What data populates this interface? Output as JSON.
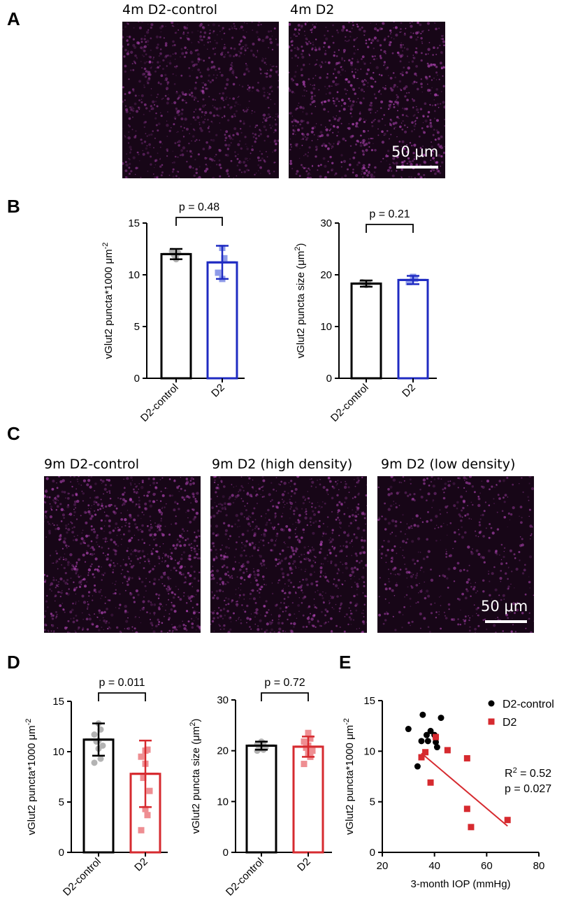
{
  "panels": {
    "A": {
      "letter": "A",
      "images": [
        {
          "title": "4m D2-control"
        },
        {
          "title": "4m D2"
        }
      ],
      "scalebar": "50 μm"
    },
    "B": {
      "letter": "B"
    },
    "C": {
      "letter": "C",
      "images": [
        {
          "title": "9m D2-control"
        },
        {
          "title": "9m D2 (high density)"
        },
        {
          "title": "9m D2 (low density)"
        }
      ],
      "scalebar": "50 μm"
    },
    "D": {
      "letter": "D"
    },
    "E": {
      "letter": "E"
    }
  },
  "colors": {
    "control": "#000000",
    "control_points": "#b3b3b3",
    "d2_4m": "#1f2bc2",
    "d2_4m_points": "#8e9be8",
    "d2_9m": "#d62a2f",
    "d2_9m_points": "#ee8e92",
    "micrograph_signal": "#c04bc4"
  },
  "chart_data": [
    {
      "id": "B-density",
      "type": "bar",
      "categories": [
        "D2-control",
        "D2"
      ],
      "values": [
        12.0,
        11.2
      ],
      "errors": [
        0.5,
        1.6
      ],
      "points": [
        [
          11.5,
          12.1,
          12.3,
          11.8,
          11.9
        ],
        [
          12.6,
          11.6,
          10.2,
          9.6
        ]
      ],
      "ylabel": "vGlut2 puncta*1000 μm",
      "ylabel_sup": "-2",
      "ylim": [
        0,
        15
      ],
      "yticks": [
        0,
        5,
        10,
        15
      ],
      "annotation": "p = 0.48",
      "series_colors": [
        "control",
        "d2_4m"
      ]
    },
    {
      "id": "B-size",
      "type": "bar",
      "categories": [
        "D2-control",
        "D2"
      ],
      "values": [
        18.3,
        19.0
      ],
      "errors": [
        0.6,
        0.8
      ],
      "points": [
        [
          18.0,
          18.4,
          18.6,
          18.2,
          18.5
        ],
        [
          19.6,
          19.2,
          18.6,
          19.4
        ]
      ],
      "ylabel": "vGlut2 puncta size (μm",
      "ylabel_sup": "2",
      "ylabel_end": ")",
      "ylim": [
        0,
        30
      ],
      "yticks": [
        0,
        10,
        20,
        30
      ],
      "annotation": "p = 0.21",
      "series_colors": [
        "control",
        "d2_4m"
      ]
    },
    {
      "id": "D-density",
      "type": "bar",
      "categories": [
        "D2-control",
        "D2"
      ],
      "values": [
        11.2,
        7.8
      ],
      "errors": [
        1.6,
        3.3
      ],
      "points": [
        [
          12.8,
          12.2,
          11.7,
          11.1,
          11.0,
          10.6,
          10.3,
          9.3,
          8.9
        ],
        [
          10.1,
          10.2,
          9.5,
          8.8,
          7.4,
          6.1,
          4.3,
          3.7,
          2.2
        ]
      ],
      "ylabel": "vGlut2 puncta*1000 μm",
      "ylabel_sup": "-2",
      "ylim": [
        0,
        15
      ],
      "yticks": [
        0,
        5,
        10,
        15
      ],
      "annotation": "p = 0.011",
      "series_colors": [
        "control",
        "d2_9m"
      ]
    },
    {
      "id": "D-size",
      "type": "bar",
      "categories": [
        "D2-control",
        "D2"
      ],
      "values": [
        21.0,
        20.8
      ],
      "errors": [
        0.8,
        2.0
      ],
      "points": [
        [
          21.8,
          21.5,
          21.2,
          21.0,
          20.8,
          20.6,
          20.4,
          20.2,
          20.0
        ],
        [
          23.5,
          22.4,
          21.8,
          21.0,
          20.6,
          20.0,
          19.4,
          18.8,
          17.4
        ]
      ],
      "ylabel": "vGlut2 puncta size (μm",
      "ylabel_sup": "2",
      "ylabel_end": ")",
      "ylim": [
        0,
        30
      ],
      "yticks": [
        0,
        10,
        20,
        30
      ],
      "annotation": "p = 0.72",
      "series_colors": [
        "control",
        "d2_9m"
      ]
    },
    {
      "id": "E",
      "type": "scatter",
      "xlabel": "3-month IOP (mmHg)",
      "ylabel": "vGlut2 puncta*1000 μm",
      "ylabel_sup": "-2",
      "xlim": [
        20,
        80
      ],
      "ylim": [
        0,
        15
      ],
      "xticks": [
        20,
        40,
        60,
        80
      ],
      "yticks": [
        0,
        5,
        10,
        15
      ],
      "series": [
        {
          "name": "D2-control",
          "color": "control",
          "marker": "circle",
          "x": [
            30,
            33.5,
            35,
            35.5,
            37,
            37.5,
            38.5,
            40,
            40.5,
            41,
            42.5
          ],
          "y": [
            12.2,
            8.5,
            11,
            13.6,
            11.6,
            11,
            12,
            11.6,
            10.9,
            10.4,
            13.3
          ]
        },
        {
          "name": "D2",
          "color": "d2_9m",
          "marker": "square",
          "x": [
            35,
            36.5,
            38.5,
            40.5,
            45,
            52.5,
            52.5,
            54,
            68
          ],
          "y": [
            9.4,
            9.9,
            6.9,
            11.4,
            10.1,
            9.3,
            4.3,
            2.5,
            3.2
          ]
        }
      ],
      "fit": {
        "x": [
          35,
          68
        ],
        "y": [
          9.8,
          2.6
        ],
        "color": "d2_9m"
      },
      "annotation_r2": "R",
      "annotation_r2_sup": "2",
      "annotation_r2_value": " = 0.52",
      "annotation_p": "p = 0.027"
    }
  ]
}
